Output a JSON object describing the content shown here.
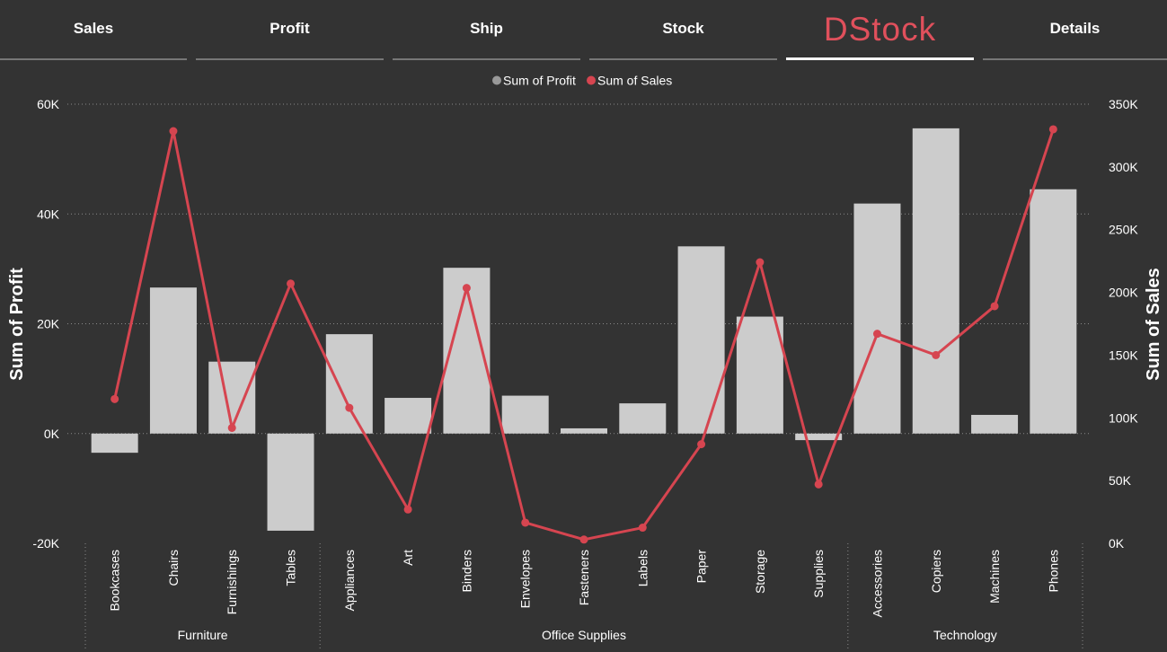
{
  "nav": {
    "tabs": [
      {
        "label": "Sales",
        "active": false
      },
      {
        "label": "Profit",
        "active": false
      },
      {
        "label": "Ship",
        "active": false
      },
      {
        "label": "Stock",
        "active": false
      },
      {
        "label": "DStock",
        "active": true
      },
      {
        "label": "Details",
        "active": false
      }
    ]
  },
  "colors": {
    "background": "#333333",
    "profit_bar": "#cccccc",
    "sales_line": "#d64550",
    "active_tab_text": "#e0505c"
  },
  "chart_data": {
    "type": "bar",
    "combo": "bar-line",
    "legend": {
      "placement": "top-center",
      "items": [
        {
          "label": "Sum of Profit",
          "color": "#999999"
        },
        {
          "label": "Sum of Sales",
          "color": "#d64550"
        }
      ]
    },
    "ylabel_left": "Sum of Profit",
    "ylabel_right": "Sum of Sales",
    "ylim_left": [
      -20000,
      60000
    ],
    "yticks_left": [
      {
        "value": 60000,
        "label": "60K"
      },
      {
        "value": 40000,
        "label": "40K"
      },
      {
        "value": 20000,
        "label": "20K"
      },
      {
        "value": 0,
        "label": "0K"
      },
      {
        "value": -20000,
        "label": "-20K"
      }
    ],
    "ylim_right": [
      0,
      350000
    ],
    "yticks_right": [
      {
        "value": 350000,
        "label": "350K"
      },
      {
        "value": 300000,
        "label": "300K"
      },
      {
        "value": 250000,
        "label": "250K"
      },
      {
        "value": 200000,
        "label": "200K"
      },
      {
        "value": 150000,
        "label": "150K"
      },
      {
        "value": 100000,
        "label": "100K"
      },
      {
        "value": 50000,
        "label": "50K"
      },
      {
        "value": 0,
        "label": "0K"
      }
    ],
    "grid": true,
    "categories": [
      "Bookcases",
      "Chairs",
      "Furnishings",
      "Tables",
      "Appliances",
      "Art",
      "Binders",
      "Envelopes",
      "Fasteners",
      "Labels",
      "Paper",
      "Storage",
      "Supplies",
      "Accessories",
      "Copiers",
      "Machines",
      "Phones"
    ],
    "groups": [
      {
        "label": "Furniture",
        "count": 4
      },
      {
        "label": "Office Supplies",
        "count": 9
      },
      {
        "label": "Technology",
        "count": 4
      }
    ],
    "series": [
      {
        "name": "Sum of Profit",
        "type": "bar",
        "axis": "left",
        "values": [
          -3500,
          26600,
          13100,
          -17700,
          18100,
          6500,
          30200,
          6900,
          950,
          5500,
          34100,
          21300,
          -1200,
          41900,
          55600,
          3400,
          44500
        ]
      },
      {
        "name": "Sum of Sales",
        "type": "line",
        "axis": "right",
        "values": [
          115000,
          328500,
          92000,
          207000,
          108000,
          27000,
          203500,
          16500,
          3000,
          12500,
          79000,
          224000,
          47000,
          167000,
          150000,
          189000,
          330000
        ]
      }
    ]
  }
}
